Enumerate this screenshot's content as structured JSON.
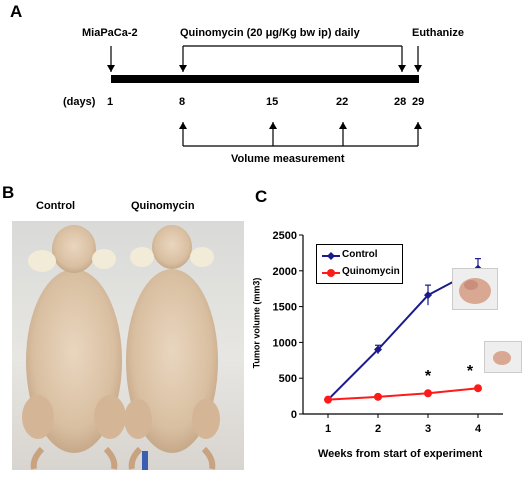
{
  "panel_a": {
    "letter": "A",
    "cell_line": "MiaPaCa-2",
    "treatment": "Quinomycin (20 μg/Kg bw ip) daily",
    "euthanize": "Euthanize",
    "days_label": "(days)",
    "days": [
      "1",
      "8",
      "15",
      "22",
      "28",
      "29"
    ],
    "measurement_label": "Volume measurement"
  },
  "panel_b": {
    "letter": "B",
    "label_left": "Control",
    "label_right": "Quinomycin"
  },
  "panel_c": {
    "letter": "C",
    "significance_marker": "*"
  },
  "colors": {
    "control": "#1a1a8c",
    "quinomycin": "#ff1a1a"
  },
  "chart_data": {
    "type": "line",
    "categories": [
      "1",
      "2",
      "3",
      "4"
    ],
    "series": [
      {
        "name": "Control",
        "values": [
          200,
          900,
          1660,
          2030
        ],
        "errors": [
          20,
          60,
          140,
          140
        ]
      },
      {
        "name": "Quinomycin",
        "values": [
          200,
          240,
          290,
          360
        ],
        "errors": [
          10,
          15,
          20,
          20
        ]
      }
    ],
    "xlabel": "Weeks from start of experiment",
    "ylabel": "Tumor volume (mm3)",
    "ylim": [
      0,
      2500
    ],
    "yticks": [
      "0",
      "500",
      "1000",
      "1500",
      "2000",
      "2500"
    ],
    "significant_points": [
      "3",
      "4"
    ],
    "legend": "top-left",
    "grid": false
  }
}
